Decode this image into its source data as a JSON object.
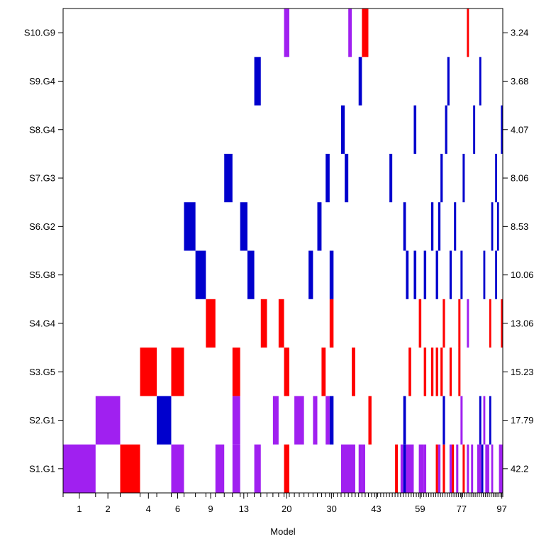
{
  "chart_data": {
    "type": "heatmap",
    "title": "",
    "xlabel": "Model",
    "ylabel": "",
    "colors": {
      "purple": "#A020F0",
      "red": "#FF0000",
      "blue": "#0000CD",
      "empty": "#FFFFFF"
    },
    "x_tick_labels": [
      "1",
      "2",
      "4",
      "6",
      "9",
      "13",
      "20",
      "30",
      "43",
      "59",
      "77",
      "97"
    ],
    "x_tick_positions": [
      0.5,
      1.5,
      3.5,
      5.5,
      8.5,
      12.5,
      19.5,
      29.5,
      42.5,
      58.5,
      76.5,
      96.5
    ],
    "rows": [
      {
        "label": "S1.G1",
        "value": "42.2",
        "segments": [
          {
            "from": 0,
            "to": 1,
            "color": "purple"
          },
          {
            "from": 2,
            "to": 3,
            "color": "red"
          },
          {
            "from": 5,
            "to": 6,
            "color": "purple"
          },
          {
            "from": 9,
            "to": 10,
            "color": "purple"
          },
          {
            "from": 11,
            "to": 12,
            "color": "purple"
          },
          {
            "from": 14,
            "to": 15,
            "color": "purple"
          },
          {
            "from": 19,
            "to": 20,
            "color": "red"
          },
          {
            "from": 32,
            "to": 36,
            "color": "purple"
          },
          {
            "from": 37,
            "to": 38,
            "color": "purple"
          },
          {
            "from": 38,
            "to": 39,
            "color": "purple"
          },
          {
            "from": 49,
            "to": 50,
            "color": "red"
          },
          {
            "from": 51,
            "to": 52,
            "color": "purple"
          },
          {
            "from": 52,
            "to": 53,
            "color": "blue"
          },
          {
            "from": 53,
            "to": 56,
            "color": "purple"
          },
          {
            "from": 58,
            "to": 60,
            "color": "purple"
          },
          {
            "from": 60,
            "to": 61,
            "color": "purple"
          },
          {
            "from": 65,
            "to": 66,
            "color": "red"
          },
          {
            "from": 66,
            "to": 67,
            "color": "purple"
          },
          {
            "from": 68,
            "to": 69,
            "color": "red"
          },
          {
            "from": 71,
            "to": 72,
            "color": "purple"
          },
          {
            "from": 72,
            "to": 73,
            "color": "red"
          },
          {
            "from": 74,
            "to": 75,
            "color": "purple"
          },
          {
            "from": 77,
            "to": 78,
            "color": "red"
          },
          {
            "from": 79,
            "to": 80,
            "color": "purple"
          },
          {
            "from": 81,
            "to": 82,
            "color": "purple"
          },
          {
            "from": 84,
            "to": 86,
            "color": "purple"
          },
          {
            "from": 86,
            "to": 87,
            "color": "blue"
          },
          {
            "from": 88,
            "to": 90,
            "color": "purple"
          },
          {
            "from": 91,
            "to": 92,
            "color": "purple"
          },
          {
            "from": 95,
            "to": 97,
            "color": "purple"
          }
        ]
      },
      {
        "label": "S2.G1",
        "value": "17.79",
        "segments": [
          {
            "from": 1,
            "to": 2,
            "color": "purple"
          },
          {
            "from": 4,
            "to": 5,
            "color": "blue"
          },
          {
            "from": 11,
            "to": 12,
            "color": "purple"
          },
          {
            "from": 17,
            "to": 18,
            "color": "purple"
          },
          {
            "from": 21,
            "to": 23,
            "color": "purple"
          },
          {
            "from": 25,
            "to": 26,
            "color": "purple"
          },
          {
            "from": 28,
            "to": 29,
            "color": "purple"
          },
          {
            "from": 29,
            "to": 30,
            "color": "blue"
          },
          {
            "from": 40,
            "to": 41,
            "color": "red"
          },
          {
            "from": 52,
            "to": 53,
            "color": "blue"
          },
          {
            "from": 68,
            "to": 69,
            "color": "blue"
          },
          {
            "from": 76,
            "to": 77,
            "color": "purple"
          },
          {
            "from": 85,
            "to": 86,
            "color": "blue"
          },
          {
            "from": 87,
            "to": 88,
            "color": "purple"
          },
          {
            "from": 90,
            "to": 91,
            "color": "blue"
          }
        ]
      },
      {
        "label": "S3.G5",
        "value": "15.23",
        "segments": [
          {
            "from": 3,
            "to": 4,
            "color": "red"
          },
          {
            "from": 5,
            "to": 6,
            "color": "red"
          },
          {
            "from": 11,
            "to": 12,
            "color": "red"
          },
          {
            "from": 19,
            "to": 20,
            "color": "red"
          },
          {
            "from": 27,
            "to": 28,
            "color": "red"
          },
          {
            "from": 35,
            "to": 36,
            "color": "red"
          },
          {
            "from": 54,
            "to": 55,
            "color": "red"
          },
          {
            "from": 60,
            "to": 61,
            "color": "red"
          },
          {
            "from": 63,
            "to": 64,
            "color": "red"
          },
          {
            "from": 65,
            "to": 66,
            "color": "red"
          },
          {
            "from": 67,
            "to": 68,
            "color": "red"
          },
          {
            "from": 71,
            "to": 72,
            "color": "red"
          },
          {
            "from": 75,
            "to": 76,
            "color": "red"
          }
        ]
      },
      {
        "label": "S4.G4",
        "value": "13.06",
        "segments": [
          {
            "from": 8,
            "to": 9,
            "color": "red"
          },
          {
            "from": 15,
            "to": 16,
            "color": "red"
          },
          {
            "from": 18,
            "to": 19,
            "color": "red"
          },
          {
            "from": 29,
            "to": 30,
            "color": "red"
          },
          {
            "from": 58,
            "to": 59,
            "color": "red"
          },
          {
            "from": 68,
            "to": 69,
            "color": "red"
          },
          {
            "from": 75,
            "to": 76,
            "color": "red"
          },
          {
            "from": 79,
            "to": 80,
            "color": "purple"
          },
          {
            "from": 90,
            "to": 91,
            "color": "red"
          },
          {
            "from": 96,
            "to": 97,
            "color": "red"
          }
        ]
      },
      {
        "label": "S5.G8",
        "value": "10.06",
        "segments": [
          {
            "from": 7,
            "to": 8,
            "color": "blue"
          },
          {
            "from": 13,
            "to": 14,
            "color": "blue"
          },
          {
            "from": 24,
            "to": 25,
            "color": "blue"
          },
          {
            "from": 29,
            "to": 30,
            "color": "blue"
          },
          {
            "from": 53,
            "to": 54,
            "color": "blue"
          },
          {
            "from": 56,
            "to": 57,
            "color": "blue"
          },
          {
            "from": 60,
            "to": 61,
            "color": "blue"
          },
          {
            "from": 65,
            "to": 66,
            "color": "blue"
          },
          {
            "from": 71,
            "to": 72,
            "color": "blue"
          },
          {
            "from": 76,
            "to": 77,
            "color": "blue"
          },
          {
            "from": 87,
            "to": 88,
            "color": "blue"
          },
          {
            "from": 93,
            "to": 94,
            "color": "blue"
          }
        ]
      },
      {
        "label": "S6.G2",
        "value": "8.53",
        "segments": [
          {
            "from": 6,
            "to": 7,
            "color": "blue"
          },
          {
            "from": 12,
            "to": 13,
            "color": "blue"
          },
          {
            "from": 26,
            "to": 27,
            "color": "blue"
          },
          {
            "from": 52,
            "to": 53,
            "color": "blue"
          },
          {
            "from": 63,
            "to": 64,
            "color": "blue"
          },
          {
            "from": 66,
            "to": 67,
            "color": "blue"
          },
          {
            "from": 73,
            "to": 74,
            "color": "blue"
          },
          {
            "from": 91,
            "to": 92,
            "color": "blue"
          },
          {
            "from": 94,
            "to": 95,
            "color": "blue"
          }
        ]
      },
      {
        "label": "S7.G3",
        "value": "8.06",
        "segments": [
          {
            "from": 10,
            "to": 11,
            "color": "blue"
          },
          {
            "from": 28,
            "to": 29,
            "color": "blue"
          },
          {
            "from": 33,
            "to": 34,
            "color": "blue"
          },
          {
            "from": 47,
            "to": 48,
            "color": "blue"
          },
          {
            "from": 67,
            "to": 68,
            "color": "blue"
          },
          {
            "from": 77,
            "to": 78,
            "color": "blue"
          },
          {
            "from": 93,
            "to": 94,
            "color": "blue"
          }
        ]
      },
      {
        "label": "S8.G4",
        "value": "4.07",
        "segments": [
          {
            "from": 32,
            "to": 33,
            "color": "blue"
          },
          {
            "from": 56,
            "to": 57,
            "color": "blue"
          },
          {
            "from": 69,
            "to": 70,
            "color": "blue"
          },
          {
            "from": 82,
            "to": 83,
            "color": "blue"
          },
          {
            "from": 96,
            "to": 97,
            "color": "blue"
          }
        ]
      },
      {
        "label": "S9.G4",
        "value": "3.68",
        "segments": [
          {
            "from": 14,
            "to": 15,
            "color": "blue"
          },
          {
            "from": 37,
            "to": 38,
            "color": "blue"
          },
          {
            "from": 70,
            "to": 71,
            "color": "blue"
          },
          {
            "from": 85,
            "to": 86,
            "color": "blue"
          }
        ]
      },
      {
        "label": "S10.G9",
        "value": "3.24",
        "segments": [
          {
            "from": 19,
            "to": 20,
            "color": "purple"
          },
          {
            "from": 34,
            "to": 35,
            "color": "purple"
          },
          {
            "from": 38,
            "to": 39,
            "color": "red"
          },
          {
            "from": 39,
            "to": 40,
            "color": "red"
          },
          {
            "from": 79,
            "to": 80,
            "color": "red"
          }
        ]
      }
    ]
  }
}
